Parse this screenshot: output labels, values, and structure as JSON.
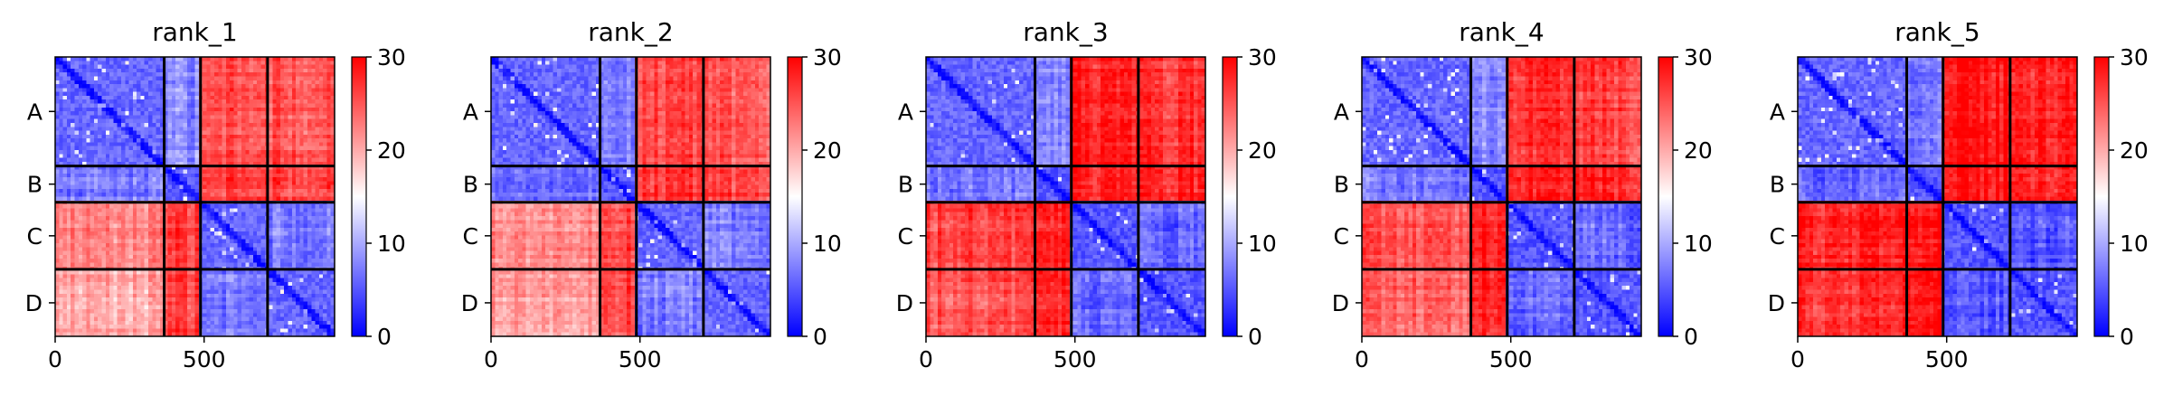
{
  "chart_data": {
    "type": "heatmap",
    "description_free": true,
    "colormap": {
      "name": "bwr",
      "low": "#0000ff",
      "mid": "#ffffff",
      "high": "#ff0000"
    },
    "color_range": [
      0,
      30
    ],
    "colorbar_ticks": [
      0,
      10,
      20,
      30
    ],
    "x_ticks": [
      0,
      500
    ],
    "x_range": [
      0,
      938
    ],
    "y_range": [
      938,
      0
    ],
    "chain_labels": [
      "A",
      "B",
      "C",
      "D"
    ],
    "chain_boundaries": [
      0,
      366,
      488,
      713,
      938
    ],
    "panels": [
      {
        "title": "rank_1",
        "block_means": [
          [
            6,
            8,
            25,
            25
          ],
          [
            7,
            5,
            26,
            26
          ],
          [
            22,
            26,
            6,
            7
          ],
          [
            20,
            26,
            7,
            6
          ]
        ]
      },
      {
        "title": "rank_2",
        "block_means": [
          [
            6,
            8,
            26,
            25
          ],
          [
            7,
            5,
            27,
            26
          ],
          [
            22,
            26,
            6,
            7
          ],
          [
            21,
            26,
            7,
            6
          ]
        ]
      },
      {
        "title": "rank_3",
        "block_means": [
          [
            6,
            8,
            28,
            27
          ],
          [
            7,
            5,
            28,
            28
          ],
          [
            26,
            28,
            5,
            6
          ],
          [
            25,
            28,
            6,
            5
          ]
        ]
      },
      {
        "title": "rank_4",
        "block_means": [
          [
            6,
            8,
            27,
            26
          ],
          [
            7,
            5,
            28,
            28
          ],
          [
            25,
            28,
            5,
            6
          ],
          [
            24,
            28,
            6,
            5
          ]
        ]
      },
      {
        "title": "rank_5",
        "block_means": [
          [
            6,
            7,
            29,
            28
          ],
          [
            6,
            5,
            29,
            28
          ],
          [
            28,
            29,
            5,
            5
          ],
          [
            27,
            29,
            5,
            5
          ]
        ]
      }
    ]
  }
}
